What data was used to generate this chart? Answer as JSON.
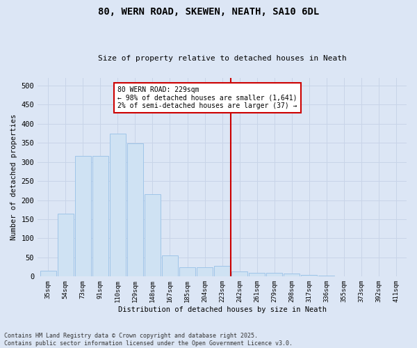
{
  "title_line1": "80, WERN ROAD, SKEWEN, NEATH, SA10 6DL",
  "title_line2": "Size of property relative to detached houses in Neath",
  "xlabel": "Distribution of detached houses by size in Neath",
  "ylabel": "Number of detached properties",
  "categories": [
    "35sqm",
    "54sqm",
    "73sqm",
    "91sqm",
    "110sqm",
    "129sqm",
    "148sqm",
    "167sqm",
    "185sqm",
    "204sqm",
    "223sqm",
    "242sqm",
    "261sqm",
    "279sqm",
    "298sqm",
    "317sqm",
    "336sqm",
    "355sqm",
    "373sqm",
    "392sqm",
    "411sqm"
  ],
  "values": [
    15,
    165,
    315,
    315,
    375,
    348,
    215,
    55,
    25,
    25,
    28,
    13,
    10,
    9,
    7,
    4,
    2,
    1,
    0,
    1,
    0
  ],
  "bar_color": "#cfe2f3",
  "bar_edge_color": "#9fc5e8",
  "vline_x_index": 10.5,
  "vline_color": "#cc0000",
  "annotation_text": "80 WERN ROAD: 229sqm\n← 98% of detached houses are smaller (1,641)\n2% of semi-detached houses are larger (37) →",
  "annotation_box_color": "#ffffff",
  "annotation_box_edge_color": "#cc0000",
  "ylim": [
    0,
    520
  ],
  "yticks": [
    0,
    50,
    100,
    150,
    200,
    250,
    300,
    350,
    400,
    450,
    500
  ],
  "grid_color": "#c8d4e8",
  "background_color": "#dce6f5",
  "footer_line1": "Contains HM Land Registry data © Crown copyright and database right 2025.",
  "footer_line2": "Contains public sector information licensed under the Open Government Licence v3.0."
}
